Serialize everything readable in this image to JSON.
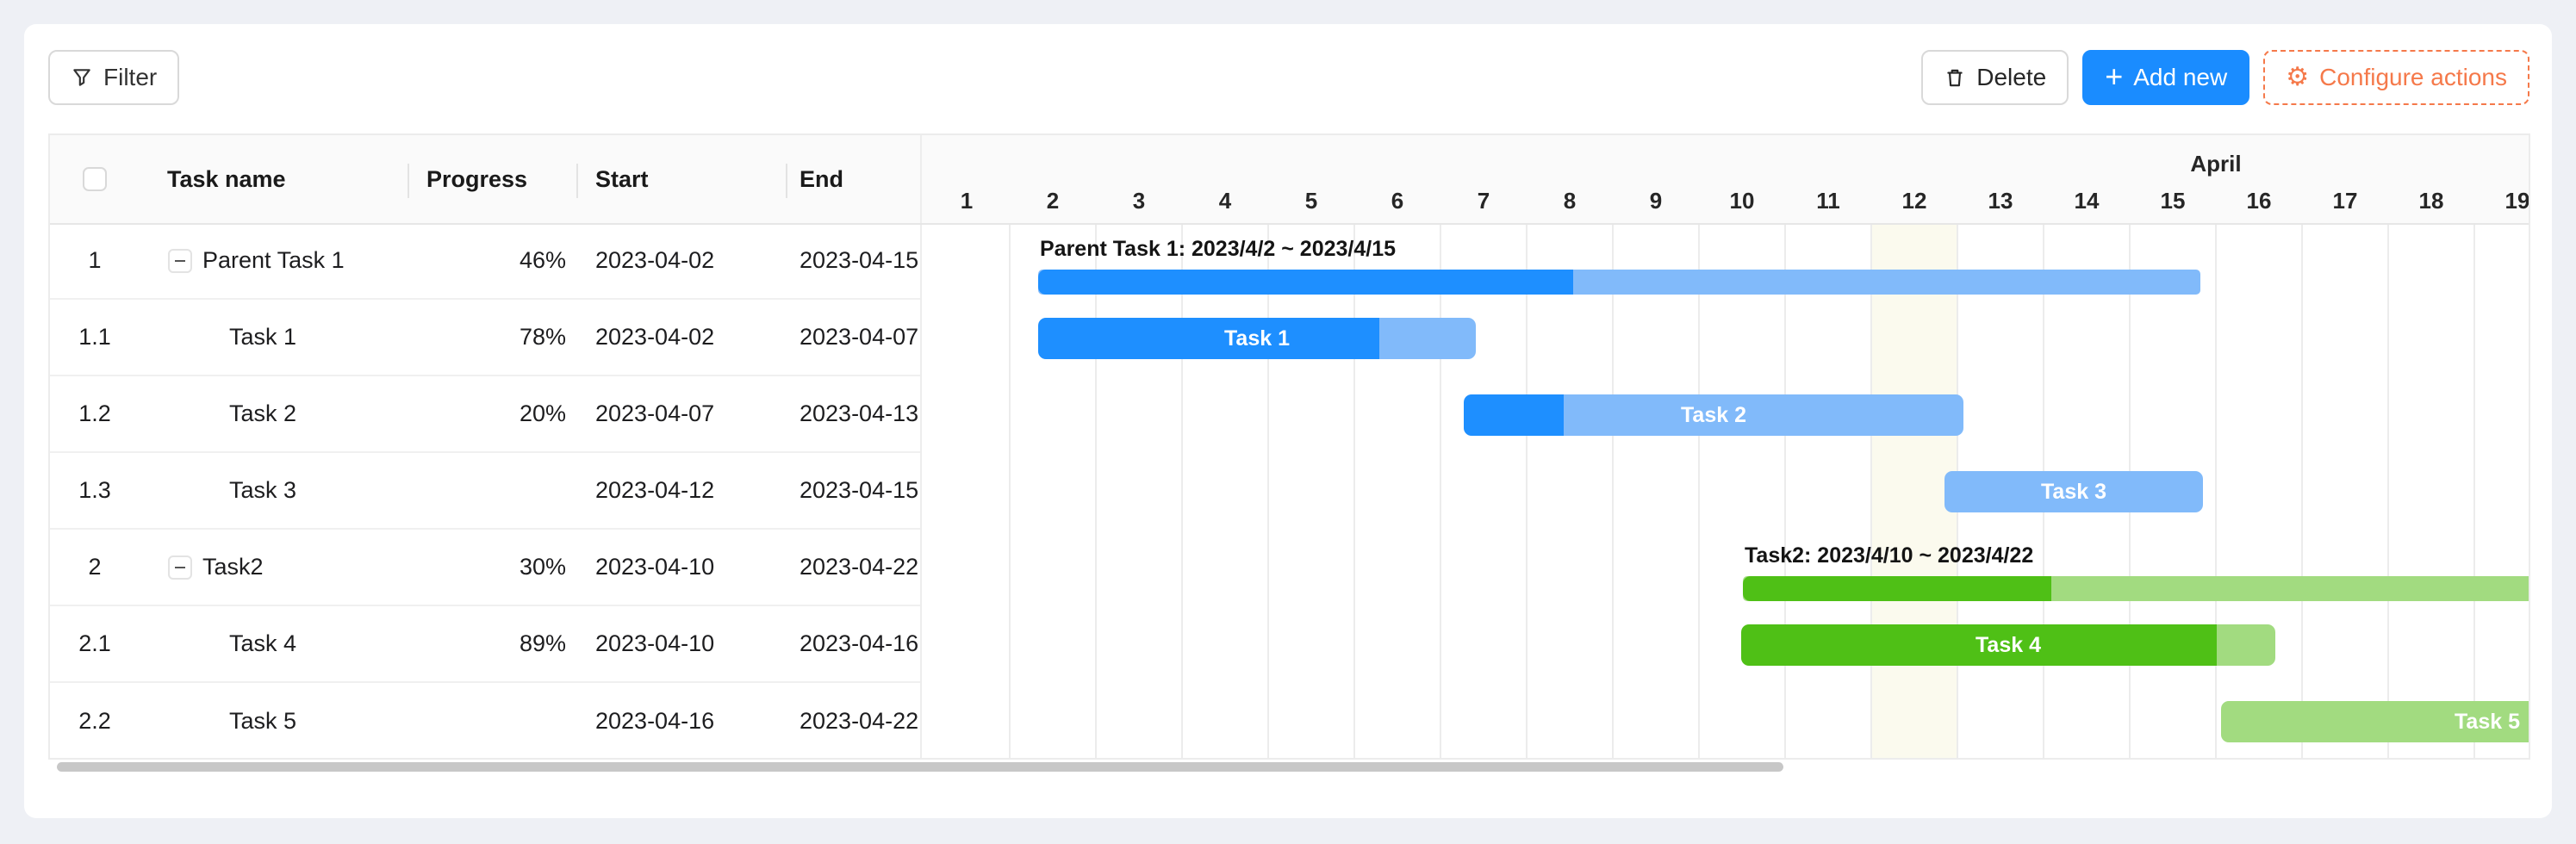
{
  "toolbar": {
    "filter_label": "Filter",
    "delete_label": "Delete",
    "add_new_icon": "+",
    "add_new_label": "Add new",
    "configure_label": "Configure actions"
  },
  "table": {
    "header": {
      "task_name": "Task name",
      "progress": "Progress",
      "start": "Start",
      "end": "End"
    },
    "rows": [
      {
        "num": "1",
        "name": "Parent Task 1",
        "parent": true,
        "progress": "46%",
        "start": "2023-04-02",
        "end": "2023-04-15"
      },
      {
        "num": "1.1",
        "name": "Task 1",
        "parent": false,
        "progress": "78%",
        "start": "2023-04-02",
        "end": "2023-04-07"
      },
      {
        "num": "1.2",
        "name": "Task 2",
        "parent": false,
        "progress": "20%",
        "start": "2023-04-07",
        "end": "2023-04-13"
      },
      {
        "num": "1.3",
        "name": "Task 3",
        "parent": false,
        "progress": "",
        "start": "2023-04-12",
        "end": "2023-04-15"
      },
      {
        "num": "2",
        "name": "Task2",
        "parent": true,
        "progress": "30%",
        "start": "2023-04-10",
        "end": "2023-04-22"
      },
      {
        "num": "2.1",
        "name": "Task 4",
        "parent": false,
        "progress": "89%",
        "start": "2023-04-10",
        "end": "2023-04-16"
      },
      {
        "num": "2.2",
        "name": "Task 5",
        "parent": false,
        "progress": "",
        "start": "2023-04-16",
        "end": "2023-04-22"
      }
    ]
  },
  "chart_data": {
    "type": "gantt",
    "month_label": "April",
    "days": [
      1,
      2,
      3,
      4,
      5,
      6,
      7,
      8,
      9,
      10,
      11,
      12,
      13,
      14,
      15,
      16,
      17,
      18,
      19
    ],
    "marked_day": 12,
    "tasks": [
      {
        "row": 0,
        "kind": "parent",
        "palette": "blue",
        "label": "Parent Task 1: 2023/4/2 ~ 2023/4/15",
        "start_date": "2023-04-02",
        "end_date": "2023-04-15",
        "progress_pct": 46,
        "x0": 1.33,
        "x1": 14.82
      },
      {
        "row": 1,
        "kind": "task",
        "palette": "blue",
        "label": "Task 1",
        "start_date": "2023-04-02",
        "end_date": "2023-04-07",
        "progress_pct": 78,
        "x0": 1.33,
        "x1": 6.41
      },
      {
        "row": 2,
        "kind": "task",
        "palette": "blue",
        "label": "Task 2",
        "start_date": "2023-04-07",
        "end_date": "2023-04-13",
        "progress_pct": 20,
        "x0": 6.27,
        "x1": 12.07
      },
      {
        "row": 3,
        "kind": "task",
        "palette": "blue",
        "label": "Task 3",
        "start_date": "2023-04-12",
        "end_date": "2023-04-15",
        "progress_pct": null,
        "x0": 11.85,
        "x1": 14.85
      },
      {
        "row": 4,
        "kind": "parent",
        "palette": "green",
        "label": "Task2: 2023/4/10 ~ 2023/4/22",
        "start_date": "2023-04-10",
        "end_date": "2023-04-22",
        "progress_pct": 30,
        "x0": 9.51,
        "x1": 21.44
      },
      {
        "row": 5,
        "kind": "task",
        "palette": "green",
        "label": "Task 4",
        "start_date": "2023-04-10",
        "end_date": "2023-04-16",
        "progress_pct": 89,
        "x0": 9.49,
        "x1": 15.69
      },
      {
        "row": 6,
        "kind": "task",
        "palette": "green",
        "label": "Task 5",
        "label_align": "right",
        "start_date": "2023-04-16",
        "end_date": "2023-04-22",
        "progress_pct": null,
        "x0": 15.06,
        "x1": 21.06
      }
    ]
  },
  "colors": {
    "blue": "#1E8FFF",
    "blue_light": "#81BAFA",
    "green": "#4FC016",
    "green_light": "#A2DB80",
    "marked_day_bg": "#FBFAEE",
    "accent_blue": "#1A8CFF",
    "accent_orange": "#F5794A"
  }
}
